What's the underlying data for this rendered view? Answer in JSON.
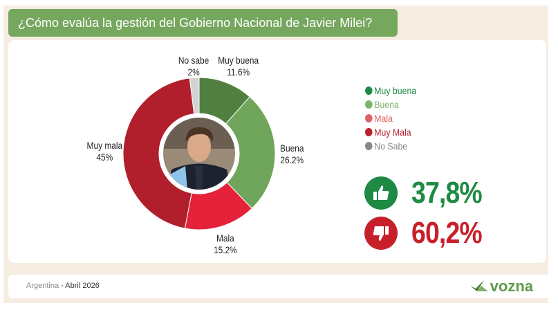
{
  "title": "¿Cómo evalúa la gestión del Gobierno Nacional de Javier Milei?",
  "chart_data": {
    "type": "pie",
    "title": "¿Cómo evalúa la gestión del Gobierno Nacional de Javier Milei?",
    "slices": [
      {
        "label": "Muy buena",
        "value": 11.6,
        "display": "11.6%",
        "color": "#517f40"
      },
      {
        "label": "Buena",
        "value": 26.2,
        "display": "26.2%",
        "color": "#6fa65b"
      },
      {
        "label": "Mala",
        "value": 15.2,
        "display": "15.2%",
        "color": "#e5223a"
      },
      {
        "label": "Muy mala",
        "value": 45,
        "display": "45%",
        "color": "#b01f2b"
      },
      {
        "label": "No sabe",
        "value": 2,
        "display": "2%",
        "color": "#d3d3d3"
      }
    ],
    "legend": [
      {
        "label": "Muy buena",
        "color": "#1e8a44"
      },
      {
        "label": "Buena",
        "color": "#7fb26a"
      },
      {
        "label": "Mala",
        "color": "#e06060"
      },
      {
        "label": "Muy Mala",
        "color": "#b8202b"
      },
      {
        "label": "No Sabe",
        "color": "#888888"
      }
    ],
    "legend_position": "right"
  },
  "summary": {
    "positive": "37,8%",
    "negative": "60,2%",
    "positive_color": "#1e8a44",
    "negative_color": "#c8202b"
  },
  "footer": {
    "country": "Argentina",
    "date": "- Abril 2026",
    "brand": "vozna"
  }
}
